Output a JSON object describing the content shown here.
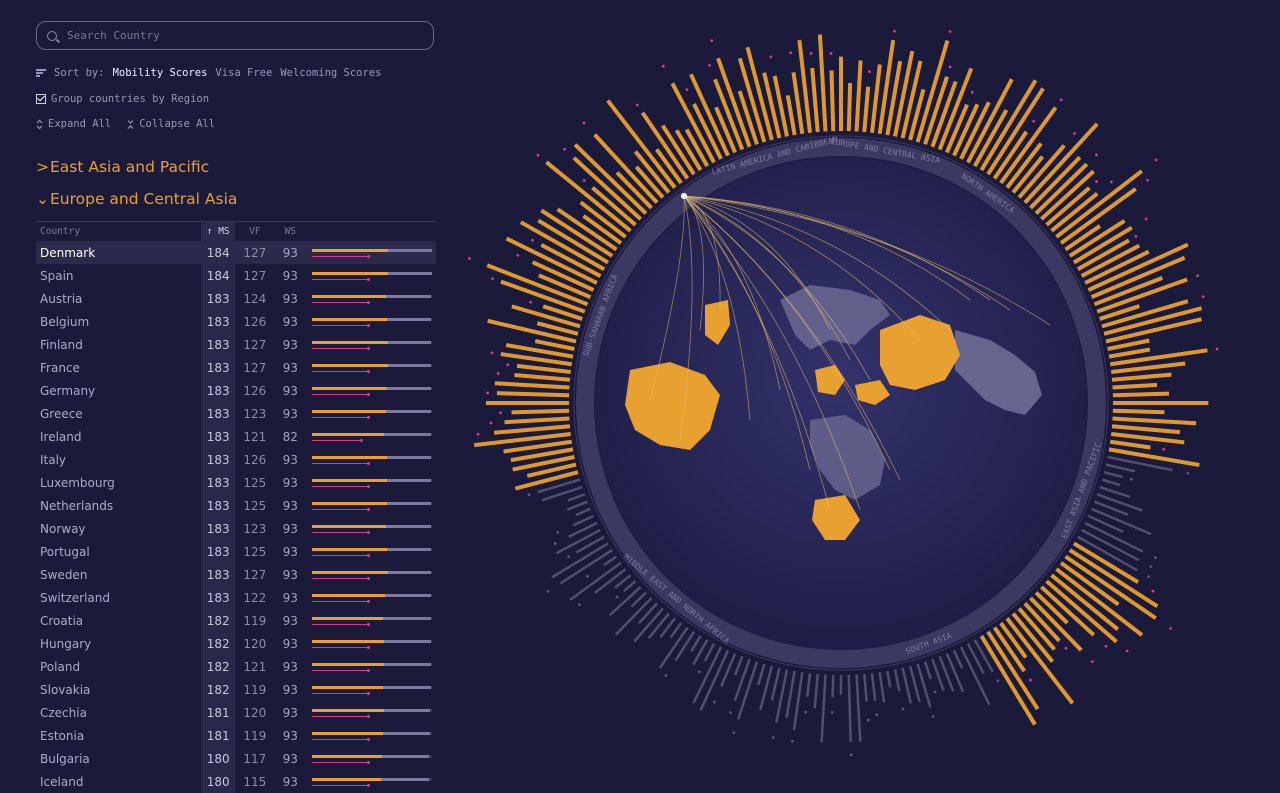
{
  "search": {
    "placeholder": "Search Country",
    "value": ""
  },
  "sort": {
    "label": "Sort by:",
    "options": [
      "Mobility Scores",
      "Visa Free",
      "Welcoming Scores"
    ],
    "active": "Mobility Scores"
  },
  "group_by_region": {
    "label": "Group countries by Region",
    "checked": true
  },
  "expand_all": "Expand All",
  "collapse_all": "Collapse All",
  "regions": [
    {
      "name": "East Asia and Pacific",
      "expanded": false
    },
    {
      "name": "Europe and Central Asia",
      "expanded": true
    }
  ],
  "table": {
    "headers": {
      "country": "Country",
      "ms": "↑ MS",
      "vf": "VF",
      "ws": "WS"
    },
    "rows": [
      {
        "country": "Denmark",
        "ms": 184,
        "vf": 127,
        "ws": 93,
        "selected": true
      },
      {
        "country": "Spain",
        "ms": 184,
        "vf": 127,
        "ws": 93
      },
      {
        "country": "Austria",
        "ms": 183,
        "vf": 124,
        "ws": 93
      },
      {
        "country": "Belgium",
        "ms": 183,
        "vf": 126,
        "ws": 93
      },
      {
        "country": "Finland",
        "ms": 183,
        "vf": 127,
        "ws": 93
      },
      {
        "country": "France",
        "ms": 183,
        "vf": 127,
        "ws": 93
      },
      {
        "country": "Germany",
        "ms": 183,
        "vf": 126,
        "ws": 93
      },
      {
        "country": "Greece",
        "ms": 183,
        "vf": 123,
        "ws": 93
      },
      {
        "country": "Ireland",
        "ms": 183,
        "vf": 121,
        "ws": 82
      },
      {
        "country": "Italy",
        "ms": 183,
        "vf": 126,
        "ws": 93
      },
      {
        "country": "Luxembourg",
        "ms": 183,
        "vf": 125,
        "ws": 93
      },
      {
        "country": "Netherlands",
        "ms": 183,
        "vf": 125,
        "ws": 93
      },
      {
        "country": "Norway",
        "ms": 183,
        "vf": 123,
        "ws": 93
      },
      {
        "country": "Portugal",
        "ms": 183,
        "vf": 125,
        "ws": 93
      },
      {
        "country": "Sweden",
        "ms": 183,
        "vf": 127,
        "ws": 93
      },
      {
        "country": "Switzerland",
        "ms": 183,
        "vf": 122,
        "ws": 93
      },
      {
        "country": "Croatia",
        "ms": 182,
        "vf": 119,
        "ws": 93
      },
      {
        "country": "Hungary",
        "ms": 182,
        "vf": 120,
        "ws": 93
      },
      {
        "country": "Poland",
        "ms": 182,
        "vf": 121,
        "ws": 93
      },
      {
        "country": "Slovakia",
        "ms": 182,
        "vf": 119,
        "ws": 93
      },
      {
        "country": "Czechia",
        "ms": 181,
        "vf": 120,
        "ws": 93
      },
      {
        "country": "Estonia",
        "ms": 181,
        "vf": 119,
        "ws": 93
      },
      {
        "country": "Bulgaria",
        "ms": 180,
        "vf": 117,
        "ws": 93
      },
      {
        "country": "Iceland",
        "ms": 180,
        "vf": 115,
        "ws": 93
      }
    ]
  },
  "radial": {
    "region_labels": [
      "EUROPE AND CENTRAL ASIA",
      "EAST ASIA AND PACIFIC",
      "SOUTH ASIA",
      "MIDDLE EAST AND NORTH AFRICA",
      "SUB-SAHARAN AFRICA",
      "LATIN AMERICA AND CARIBBEAN",
      "NORTH AMERICA"
    ],
    "colors": {
      "accent": "#e8a030",
      "secondary": "#7d7aa0",
      "welcoming": "#d63c8c",
      "background": "#1c1a3a",
      "globe": "#232250",
      "land": "#6f6d96"
    }
  }
}
